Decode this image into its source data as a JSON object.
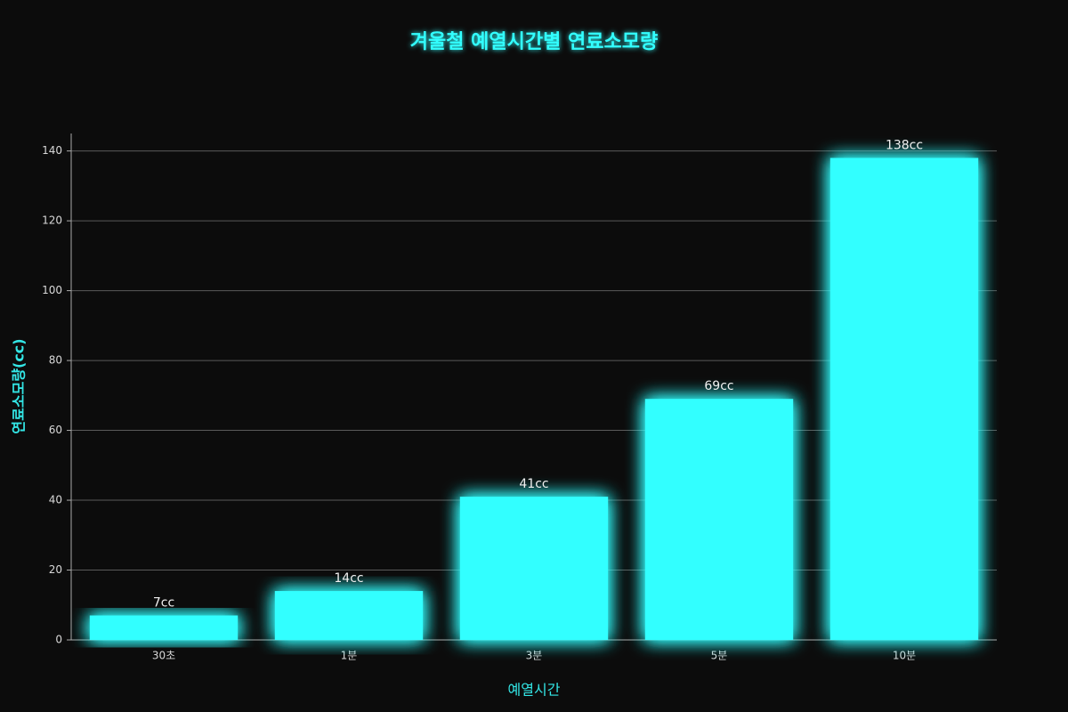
{
  "chart_data": {
    "type": "bar",
    "title": "겨울철 예열시간별 연료소모량",
    "x_label": "예열시간",
    "y_label": "연료소모량(cc)",
    "categories": [
      "30초",
      "1분",
      "3분",
      "5분",
      "10분"
    ],
    "values": [
      7,
      14,
      41,
      69,
      138
    ],
    "value_labels": [
      "7cc",
      "14cc",
      "41cc",
      "69cc",
      "138cc"
    ],
    "color": "#33ffff",
    "ylim": [
      0,
      145
    ],
    "yticks": [
      0,
      20,
      40,
      60,
      80,
      100,
      120,
      140
    ],
    "grid": true
  }
}
